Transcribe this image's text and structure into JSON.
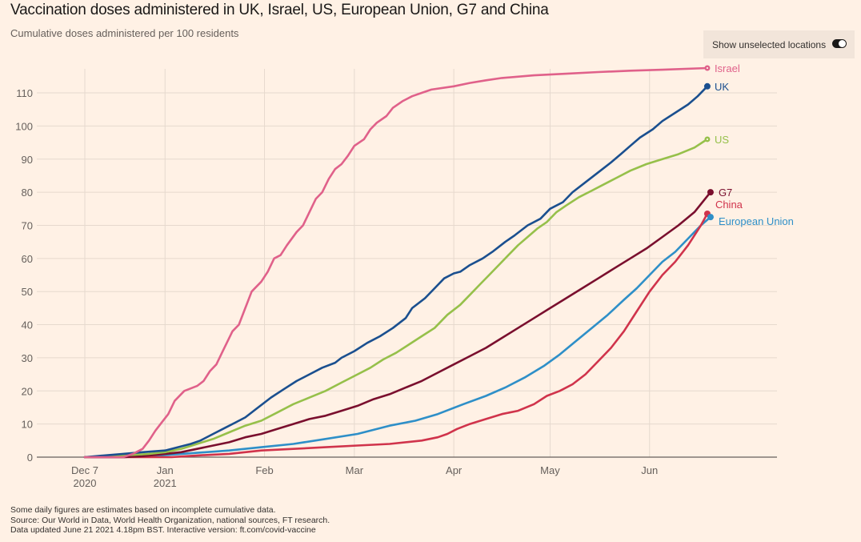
{
  "header": {
    "title": "Vaccination doses administered in UK, Israel, US, European Union, G7 and China",
    "subtitle": "Cumulative doses administered per 100 residents"
  },
  "controls": {
    "toggle_label": "Show unselected locations",
    "toggle_on": true
  },
  "footer": {
    "note": "Some daily figures are estimates based on incomplete cumulative data.",
    "source": "Source: Our World in Data, World Health Organization, national sources, FT research.",
    "updated": "Data updated June 21 2021 4.18pm BST. Interactive version: ft.com/covid-vaccine"
  },
  "chart_data": {
    "type": "line",
    "title": "Vaccination doses administered in UK, Israel, US, European Union, G7 and China",
    "subtitle": "Cumulative doses administered per 100 residents",
    "xlabel": "",
    "ylabel": "",
    "x_unit": "days since 2020-12-07",
    "xlim": [
      0,
      216
    ],
    "ylim": [
      0,
      117
    ],
    "grid": true,
    "legend": "direct labels at line ends (right)",
    "y_ticks": [
      0,
      10,
      20,
      30,
      40,
      50,
      60,
      70,
      80,
      90,
      100,
      110
    ],
    "x_ticks": [
      {
        "day": 0,
        "label": "Dec 7",
        "sublabel": "2020"
      },
      {
        "day": 25,
        "label": "Jan",
        "sublabel": "2021"
      },
      {
        "day": 56,
        "label": "Feb",
        "sublabel": ""
      },
      {
        "day": 84,
        "label": "Mar",
        "sublabel": ""
      },
      {
        "day": 115,
        "label": "Apr",
        "sublabel": ""
      },
      {
        "day": 145,
        "label": "May",
        "sublabel": ""
      },
      {
        "day": 176,
        "label": "Jun",
        "sublabel": ""
      }
    ],
    "series": [
      {
        "name": "Israel",
        "color": "#e0618a",
        "points": [
          [
            0,
            0
          ],
          [
            12,
            0
          ],
          [
            15,
            1
          ],
          [
            18,
            2.5
          ],
          [
            20,
            5
          ],
          [
            22,
            8
          ],
          [
            24,
            10.5
          ],
          [
            26,
            13
          ],
          [
            28,
            17
          ],
          [
            31,
            20
          ],
          [
            35,
            21.5
          ],
          [
            37,
            23
          ],
          [
            39,
            26
          ],
          [
            41,
            28
          ],
          [
            43,
            32
          ],
          [
            46,
            38
          ],
          [
            48,
            40
          ],
          [
            50,
            45
          ],
          [
            52,
            50
          ],
          [
            55,
            53
          ],
          [
            57,
            56
          ],
          [
            59,
            60
          ],
          [
            61,
            61
          ],
          [
            63,
            64
          ],
          [
            66,
            68
          ],
          [
            68,
            70
          ],
          [
            70,
            74
          ],
          [
            72,
            78
          ],
          [
            74,
            80
          ],
          [
            76,
            84
          ],
          [
            78,
            87
          ],
          [
            80,
            88.5
          ],
          [
            82,
            91
          ],
          [
            84,
            94
          ],
          [
            87,
            96
          ],
          [
            89,
            99
          ],
          [
            91,
            101
          ],
          [
            94,
            103
          ],
          [
            96,
            105.5
          ],
          [
            99,
            107.5
          ],
          [
            102,
            109
          ],
          [
            105,
            110
          ],
          [
            108,
            111
          ],
          [
            115,
            112
          ],
          [
            120,
            113
          ],
          [
            125,
            113.8
          ],
          [
            130,
            114.5
          ],
          [
            140,
            115.3
          ],
          [
            150,
            115.8
          ],
          [
            160,
            116.3
          ],
          [
            170,
            116.7
          ],
          [
            180,
            117
          ],
          [
            194,
            117.5
          ]
        ]
      },
      {
        "name": "UK",
        "color": "#1a4f8f",
        "points": [
          [
            0,
            0
          ],
          [
            6,
            0.5
          ],
          [
            12,
            1
          ],
          [
            18,
            1.5
          ],
          [
            25,
            2
          ],
          [
            29,
            3
          ],
          [
            33,
            4
          ],
          [
            36,
            5
          ],
          [
            40,
            7
          ],
          [
            44,
            9
          ],
          [
            47,
            10.5
          ],
          [
            50,
            12
          ],
          [
            54,
            15
          ],
          [
            58,
            18
          ],
          [
            62,
            20.5
          ],
          [
            66,
            23
          ],
          [
            70,
            25
          ],
          [
            74,
            27
          ],
          [
            78,
            28.5
          ],
          [
            80,
            30
          ],
          [
            84,
            32
          ],
          [
            88,
            34.5
          ],
          [
            92,
            36.5
          ],
          [
            96,
            39
          ],
          [
            100,
            42
          ],
          [
            102,
            45
          ],
          [
            106,
            48
          ],
          [
            109,
            51
          ],
          [
            112,
            54
          ],
          [
            115,
            55.5
          ],
          [
            117,
            56
          ],
          [
            120,
            58
          ],
          [
            124,
            60
          ],
          [
            127,
            62
          ],
          [
            131,
            65
          ],
          [
            134,
            67
          ],
          [
            138,
            70
          ],
          [
            142,
            72
          ],
          [
            145,
            75
          ],
          [
            149,
            77
          ],
          [
            152,
            80
          ],
          [
            156,
            83
          ],
          [
            160,
            86
          ],
          [
            164,
            89
          ],
          [
            167,
            91.5
          ],
          [
            170,
            94
          ],
          [
            173,
            96.5
          ],
          [
            177,
            99
          ],
          [
            180,
            101.5
          ],
          [
            184,
            104
          ],
          [
            188,
            106.5
          ],
          [
            191,
            109
          ],
          [
            194,
            112
          ]
        ]
      },
      {
        "name": "US",
        "color": "#96c04a",
        "points": [
          [
            0,
            0
          ],
          [
            6,
            0.2
          ],
          [
            12,
            0.5
          ],
          [
            20,
            1
          ],
          [
            25,
            1.5
          ],
          [
            30,
            2.5
          ],
          [
            35,
            4
          ],
          [
            40,
            5.5
          ],
          [
            45,
            7.5
          ],
          [
            50,
            9.5
          ],
          [
            55,
            11
          ],
          [
            60,
            13.5
          ],
          [
            65,
            16
          ],
          [
            70,
            18
          ],
          [
            75,
            20
          ],
          [
            80,
            22.5
          ],
          [
            85,
            25
          ],
          [
            89,
            27
          ],
          [
            93,
            29.5
          ],
          [
            97,
            31.5
          ],
          [
            101,
            34
          ],
          [
            105,
            36.5
          ],
          [
            109,
            39
          ],
          [
            113,
            43
          ],
          [
            117,
            46
          ],
          [
            120,
            49
          ],
          [
            123,
            52
          ],
          [
            126,
            55
          ],
          [
            129,
            58
          ],
          [
            132,
            61
          ],
          [
            135,
            64
          ],
          [
            138,
            66.5
          ],
          [
            141,
            69
          ],
          [
            144,
            71
          ],
          [
            147,
            74
          ],
          [
            150,
            76
          ],
          [
            154,
            78.5
          ],
          [
            158,
            80.5
          ],
          [
            162,
            82.5
          ],
          [
            166,
            84.5
          ],
          [
            170,
            86.5
          ],
          [
            175,
            88.5
          ],
          [
            180,
            90
          ],
          [
            185,
            91.5
          ],
          [
            190,
            93.5
          ],
          [
            194,
            96
          ]
        ]
      },
      {
        "name": "G7",
        "color": "#7a0f2e",
        "points": [
          [
            0,
            0
          ],
          [
            12,
            0
          ],
          [
            18,
            0.3
          ],
          [
            25,
            1
          ],
          [
            30,
            1.5
          ],
          [
            35,
            2.5
          ],
          [
            40,
            3.5
          ],
          [
            45,
            4.5
          ],
          [
            50,
            6
          ],
          [
            55,
            7
          ],
          [
            60,
            8.5
          ],
          [
            65,
            10
          ],
          [
            70,
            11.5
          ],
          [
            75,
            12.5
          ],
          [
            80,
            14
          ],
          [
            85,
            15.5
          ],
          [
            90,
            17.5
          ],
          [
            95,
            19
          ],
          [
            100,
            21
          ],
          [
            105,
            23
          ],
          [
            110,
            25.5
          ],
          [
            115,
            28
          ],
          [
            120,
            30.5
          ],
          [
            125,
            33
          ],
          [
            130,
            36
          ],
          [
            135,
            39
          ],
          [
            140,
            42
          ],
          [
            145,
            45
          ],
          [
            150,
            48
          ],
          [
            155,
            51
          ],
          [
            160,
            54
          ],
          [
            165,
            57
          ],
          [
            170,
            60
          ],
          [
            175,
            63
          ],
          [
            180,
            66.5
          ],
          [
            185,
            70
          ],
          [
            190,
            74
          ],
          [
            195,
            80
          ]
        ]
      },
      {
        "name": "European Union",
        "color": "#2e8fc8",
        "points": [
          [
            0,
            0
          ],
          [
            12,
            0
          ],
          [
            20,
            0.3
          ],
          [
            25,
            0.6
          ],
          [
            35,
            1.3
          ],
          [
            45,
            2
          ],
          [
            55,
            3
          ],
          [
            65,
            4
          ],
          [
            75,
            5.5
          ],
          [
            85,
            7
          ],
          [
            95,
            9.5
          ],
          [
            103,
            11
          ],
          [
            110,
            13
          ],
          [
            118,
            16
          ],
          [
            125,
            18.5
          ],
          [
            131,
            21
          ],
          [
            137,
            24
          ],
          [
            143,
            27.5
          ],
          [
            148,
            31
          ],
          [
            153,
            35
          ],
          [
            158,
            39
          ],
          [
            163,
            43
          ],
          [
            168,
            47.5
          ],
          [
            172,
            51
          ],
          [
            176,
            55
          ],
          [
            180,
            59
          ],
          [
            184,
            62
          ],
          [
            188,
            66
          ],
          [
            192,
            70
          ],
          [
            195,
            72.5
          ]
        ]
      },
      {
        "name": "China",
        "color": "#d0334b",
        "points": [
          [
            0,
            0
          ],
          [
            27,
            0
          ],
          [
            35,
            0.5
          ],
          [
            45,
            1
          ],
          [
            55,
            2
          ],
          [
            65,
            2.5
          ],
          [
            75,
            3
          ],
          [
            85,
            3.5
          ],
          [
            95,
            4
          ],
          [
            105,
            5
          ],
          [
            110,
            6
          ],
          [
            113,
            7
          ],
          [
            116,
            8.5
          ],
          [
            120,
            10
          ],
          [
            125,
            11.5
          ],
          [
            130,
            13
          ],
          [
            135,
            14
          ],
          [
            140,
            16
          ],
          [
            144,
            18.5
          ],
          [
            148,
            20
          ],
          [
            152,
            22
          ],
          [
            156,
            25
          ],
          [
            160,
            29
          ],
          [
            164,
            33
          ],
          [
            168,
            38
          ],
          [
            172,
            44
          ],
          [
            176,
            50
          ],
          [
            180,
            55
          ],
          [
            184,
            59
          ],
          [
            188,
            64
          ],
          [
            192,
            70
          ],
          [
            194,
            73.5
          ]
        ]
      }
    ],
    "labels": [
      {
        "series": "Israel",
        "text": "Israel",
        "value": 117.5
      },
      {
        "series": "UK",
        "text": "UK",
        "value": 112
      },
      {
        "series": "US",
        "text": "US",
        "value": 96
      },
      {
        "series": "G7",
        "text": "G7",
        "value": 80
      },
      {
        "series": "China",
        "text": "China",
        "value": 73.5
      },
      {
        "series": "European Union",
        "text": "European Union",
        "value": 72.5
      }
    ]
  }
}
